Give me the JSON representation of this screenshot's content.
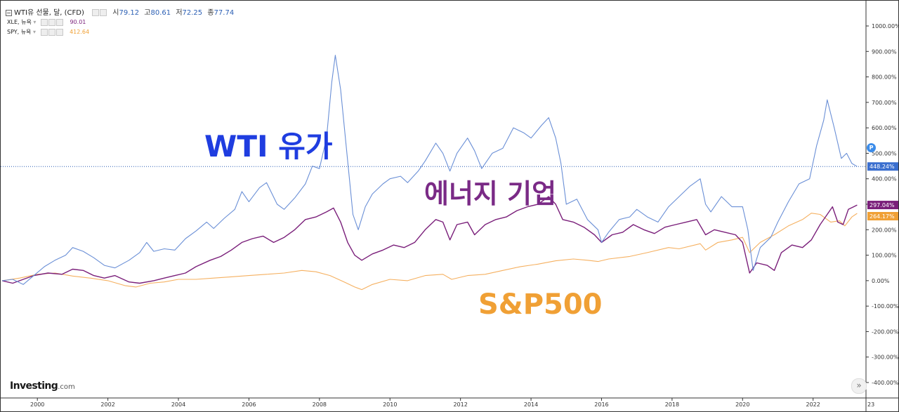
{
  "header": {
    "main_symbol": "WTI유 선물, 달, (CFD)",
    "ohlc": [
      {
        "key": "시",
        "value": "79.12"
      },
      {
        "key": "고",
        "value": "80.61"
      },
      {
        "key": "저",
        "value": "72.25"
      },
      {
        "key": "종",
        "value": "77.74"
      }
    ],
    "overlays": [
      {
        "symbol": "XLE, 뉴욕",
        "value": "90.01",
        "color": "#7a1f7a"
      },
      {
        "symbol": "SPY, 뉴욕",
        "value": "412.64",
        "color": "#f0a035"
      }
    ]
  },
  "brand": {
    "name": "Investing",
    "suffix": ".com"
  },
  "p_badge": "P",
  "scroll_button": "»",
  "annotations": [
    {
      "text": "WTI 유가",
      "color": "#1f3de0"
    },
    {
      "text": "에너지 기업",
      "color": "#7a2a86"
    },
    {
      "text": "S&P500",
      "color": "#f0a035"
    }
  ],
  "chart_data": {
    "type": "line",
    "yaxis": {
      "min": -450,
      "max": 1000,
      "ticks": [
        1000,
        900,
        800,
        700,
        600,
        500,
        400,
        300,
        200,
        100,
        0,
        -100,
        -200,
        -300,
        -400
      ],
      "tick_labels": [
        "1000.00%",
        "900.00%",
        "800.00%",
        "700.00%",
        "600.00%",
        "500.00%",
        "400.00%",
        "300.00%",
        "200.00%",
        "100.00%",
        "0.00%",
        "-100.00%",
        "-200.00%",
        "-300.00%",
        "-400.00%"
      ]
    },
    "xaxis": {
      "min": 1999.0,
      "max": 2023.5,
      "ticks": [
        2000,
        2002,
        2004,
        2006,
        2008,
        2010,
        2012,
        2014,
        2016,
        2018,
        2020,
        2022
      ],
      "tick_labels": [
        "2000",
        "2002",
        "2004",
        "2006",
        "2008",
        "2010",
        "2012",
        "2014",
        "2016",
        "2018",
        "2020",
        "2022"
      ],
      "edge_label": "23"
    },
    "grid": false,
    "reference_line": {
      "y": 448.24,
      "style": "dotted",
      "color": "#2b5fb4"
    },
    "last_value_labels": [
      {
        "text": "448.24%",
        "y": 448.24,
        "color": "#3b6fcf"
      },
      {
        "text": "297.04%",
        "y": 297.04,
        "color": "#7a1f7a"
      },
      {
        "text": "264.17%",
        "y": 264.17,
        "color": "#f0a035"
      }
    ],
    "series": [
      {
        "name": "WTI유 선물",
        "color": "#6a8fd6",
        "points": [
          [
            1999.0,
            0
          ],
          [
            1999.3,
            5
          ],
          [
            1999.6,
            -15
          ],
          [
            1999.9,
            20
          ],
          [
            2000.2,
            55
          ],
          [
            2000.5,
            80
          ],
          [
            2000.8,
            100
          ],
          [
            2001.0,
            130
          ],
          [
            2001.3,
            115
          ],
          [
            2001.6,
            90
          ],
          [
            2001.9,
            60
          ],
          [
            2002.2,
            50
          ],
          [
            2002.6,
            80
          ],
          [
            2002.9,
            110
          ],
          [
            2003.1,
            150
          ],
          [
            2003.3,
            115
          ],
          [
            2003.6,
            125
          ],
          [
            2003.9,
            120
          ],
          [
            2004.2,
            165
          ],
          [
            2004.5,
            195
          ],
          [
            2004.8,
            230
          ],
          [
            2005.0,
            205
          ],
          [
            2005.3,
            245
          ],
          [
            2005.6,
            280
          ],
          [
            2005.8,
            350
          ],
          [
            2006.0,
            310
          ],
          [
            2006.3,
            365
          ],
          [
            2006.5,
            385
          ],
          [
            2006.8,
            300
          ],
          [
            2007.0,
            280
          ],
          [
            2007.3,
            325
          ],
          [
            2007.6,
            380
          ],
          [
            2007.8,
            450
          ],
          [
            2008.0,
            440
          ],
          [
            2008.2,
            560
          ],
          [
            2008.35,
            780
          ],
          [
            2008.45,
            885
          ],
          [
            2008.6,
            750
          ],
          [
            2008.75,
            540
          ],
          [
            2008.95,
            260
          ],
          [
            2009.1,
            200
          ],
          [
            2009.3,
            290
          ],
          [
            2009.5,
            340
          ],
          [
            2009.8,
            380
          ],
          [
            2010.0,
            400
          ],
          [
            2010.3,
            410
          ],
          [
            2010.5,
            385
          ],
          [
            2010.8,
            430
          ],
          [
            2011.0,
            470
          ],
          [
            2011.3,
            540
          ],
          [
            2011.5,
            500
          ],
          [
            2011.7,
            430
          ],
          [
            2011.9,
            500
          ],
          [
            2012.2,
            560
          ],
          [
            2012.4,
            510
          ],
          [
            2012.6,
            440
          ],
          [
            2012.9,
            500
          ],
          [
            2013.2,
            520
          ],
          [
            2013.5,
            600
          ],
          [
            2013.8,
            580
          ],
          [
            2014.0,
            560
          ],
          [
            2014.3,
            610
          ],
          [
            2014.5,
            640
          ],
          [
            2014.7,
            560
          ],
          [
            2014.85,
            460
          ],
          [
            2015.0,
            300
          ],
          [
            2015.3,
            320
          ],
          [
            2015.6,
            240
          ],
          [
            2015.9,
            200
          ],
          [
            2016.0,
            150
          ],
          [
            2016.2,
            190
          ],
          [
            2016.5,
            240
          ],
          [
            2016.8,
            250
          ],
          [
            2017.0,
            280
          ],
          [
            2017.3,
            250
          ],
          [
            2017.6,
            230
          ],
          [
            2017.9,
            290
          ],
          [
            2018.2,
            330
          ],
          [
            2018.5,
            370
          ],
          [
            2018.8,
            400
          ],
          [
            2018.95,
            300
          ],
          [
            2019.1,
            270
          ],
          [
            2019.4,
            330
          ],
          [
            2019.7,
            290
          ],
          [
            2020.0,
            290
          ],
          [
            2020.15,
            200
          ],
          [
            2020.3,
            40
          ],
          [
            2020.5,
            130
          ],
          [
            2020.8,
            170
          ],
          [
            2021.0,
            230
          ],
          [
            2021.3,
            310
          ],
          [
            2021.6,
            380
          ],
          [
            2021.9,
            400
          ],
          [
            2022.1,
            530
          ],
          [
            2022.3,
            630
          ],
          [
            2022.4,
            710
          ],
          [
            2022.6,
            600
          ],
          [
            2022.8,
            480
          ],
          [
            2022.95,
            500
          ],
          [
            2023.1,
            460
          ],
          [
            2023.25,
            448.24
          ]
        ]
      },
      {
        "name": "XLE",
        "color": "#7a1f7a",
        "points": [
          [
            1999.0,
            0
          ],
          [
            1999.3,
            -10
          ],
          [
            1999.6,
            5
          ],
          [
            1999.9,
            20
          ],
          [
            2000.3,
            30
          ],
          [
            2000.7,
            25
          ],
          [
            2001.0,
            45
          ],
          [
            2001.3,
            40
          ],
          [
            2001.6,
            20
          ],
          [
            2001.9,
            10
          ],
          [
            2002.2,
            20
          ],
          [
            2002.6,
            -5
          ],
          [
            2002.9,
            -10
          ],
          [
            2003.3,
            0
          ],
          [
            2003.6,
            10
          ],
          [
            2003.9,
            20
          ],
          [
            2004.2,
            30
          ],
          [
            2004.5,
            55
          ],
          [
            2004.9,
            80
          ],
          [
            2005.2,
            95
          ],
          [
            2005.5,
            120
          ],
          [
            2005.8,
            150
          ],
          [
            2006.1,
            165
          ],
          [
            2006.4,
            175
          ],
          [
            2006.7,
            150
          ],
          [
            2007.0,
            170
          ],
          [
            2007.3,
            200
          ],
          [
            2007.6,
            240
          ],
          [
            2007.9,
            250
          ],
          [
            2008.2,
            270
          ],
          [
            2008.4,
            285
          ],
          [
            2008.6,
            230
          ],
          [
            2008.8,
            150
          ],
          [
            2009.0,
            100
          ],
          [
            2009.2,
            80
          ],
          [
            2009.5,
            105
          ],
          [
            2009.8,
            120
          ],
          [
            2010.1,
            140
          ],
          [
            2010.4,
            130
          ],
          [
            2010.7,
            150
          ],
          [
            2011.0,
            200
          ],
          [
            2011.3,
            240
          ],
          [
            2011.5,
            230
          ],
          [
            2011.7,
            160
          ],
          [
            2011.9,
            220
          ],
          [
            2012.2,
            230
          ],
          [
            2012.4,
            180
          ],
          [
            2012.7,
            220
          ],
          [
            2013.0,
            240
          ],
          [
            2013.3,
            250
          ],
          [
            2013.6,
            275
          ],
          [
            2013.9,
            290
          ],
          [
            2014.2,
            300
          ],
          [
            2014.5,
            330
          ],
          [
            2014.7,
            300
          ],
          [
            2014.9,
            240
          ],
          [
            2015.2,
            230
          ],
          [
            2015.5,
            210
          ],
          [
            2015.8,
            180
          ],
          [
            2016.0,
            150
          ],
          [
            2016.3,
            180
          ],
          [
            2016.6,
            190
          ],
          [
            2016.9,
            220
          ],
          [
            2017.2,
            200
          ],
          [
            2017.5,
            185
          ],
          [
            2017.8,
            210
          ],
          [
            2018.1,
            220
          ],
          [
            2018.4,
            230
          ],
          [
            2018.7,
            240
          ],
          [
            2018.95,
            180
          ],
          [
            2019.2,
            200
          ],
          [
            2019.5,
            190
          ],
          [
            2019.8,
            180
          ],
          [
            2020.0,
            150
          ],
          [
            2020.2,
            30
          ],
          [
            2020.4,
            70
          ],
          [
            2020.7,
            60
          ],
          [
            2020.9,
            40
          ],
          [
            2021.1,
            110
          ],
          [
            2021.4,
            140
          ],
          [
            2021.7,
            130
          ],
          [
            2021.95,
            160
          ],
          [
            2022.2,
            220
          ],
          [
            2022.4,
            260
          ],
          [
            2022.55,
            290
          ],
          [
            2022.7,
            230
          ],
          [
            2022.85,
            220
          ],
          [
            2023.0,
            280
          ],
          [
            2023.15,
            290
          ],
          [
            2023.25,
            297.04
          ]
        ]
      },
      {
        "name": "SPY",
        "color": "#f5b060",
        "points": [
          [
            1999.0,
            0
          ],
          [
            1999.5,
            10
          ],
          [
            2000.0,
            25
          ],
          [
            2000.5,
            30
          ],
          [
            2001.0,
            18
          ],
          [
            2001.5,
            10
          ],
          [
            2002.0,
            0
          ],
          [
            2002.5,
            -20
          ],
          [
            2002.8,
            -25
          ],
          [
            2003.2,
            -10
          ],
          [
            2003.6,
            -5
          ],
          [
            2004.0,
            5
          ],
          [
            2004.5,
            5
          ],
          [
            2005.0,
            10
          ],
          [
            2005.5,
            15
          ],
          [
            2006.0,
            20
          ],
          [
            2006.5,
            25
          ],
          [
            2007.0,
            30
          ],
          [
            2007.5,
            40
          ],
          [
            2007.9,
            35
          ],
          [
            2008.3,
            20
          ],
          [
            2008.7,
            -5
          ],
          [
            2009.0,
            -25
          ],
          [
            2009.2,
            -35
          ],
          [
            2009.5,
            -15
          ],
          [
            2010.0,
            5
          ],
          [
            2010.5,
            0
          ],
          [
            2011.0,
            20
          ],
          [
            2011.5,
            25
          ],
          [
            2011.75,
            5
          ],
          [
            2012.2,
            20
          ],
          [
            2012.7,
            25
          ],
          [
            2013.2,
            40
          ],
          [
            2013.7,
            55
          ],
          [
            2014.2,
            65
          ],
          [
            2014.7,
            78
          ],
          [
            2015.2,
            85
          ],
          [
            2015.6,
            80
          ],
          [
            2015.9,
            75
          ],
          [
            2016.2,
            85
          ],
          [
            2016.8,
            95
          ],
          [
            2017.3,
            110
          ],
          [
            2017.9,
            130
          ],
          [
            2018.2,
            125
          ],
          [
            2018.8,
            145
          ],
          [
            2018.95,
            120
          ],
          [
            2019.3,
            150
          ],
          [
            2019.7,
            160
          ],
          [
            2020.0,
            170
          ],
          [
            2020.2,
            110
          ],
          [
            2020.5,
            150
          ],
          [
            2020.9,
            180
          ],
          [
            2021.3,
            215
          ],
          [
            2021.7,
            240
          ],
          [
            2021.95,
            265
          ],
          [
            2022.2,
            260
          ],
          [
            2022.5,
            230
          ],
          [
            2022.75,
            235
          ],
          [
            2022.9,
            215
          ],
          [
            2023.1,
            250
          ],
          [
            2023.25,
            264.17
          ]
        ]
      }
    ]
  }
}
